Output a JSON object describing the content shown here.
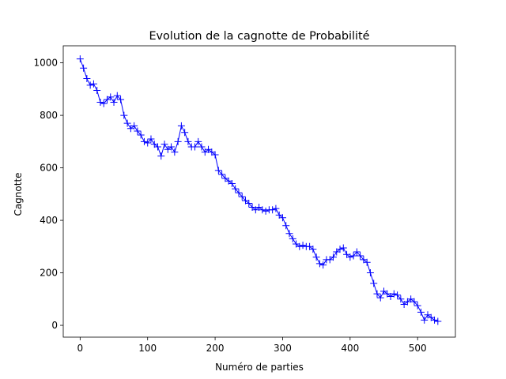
{
  "chart_data": {
    "type": "line",
    "title": "Evolution de la cagnotte de Probabilité",
    "xlabel": "Numéro de parties",
    "ylabel": "Cagnotte",
    "xlim": [
      -25,
      556
    ],
    "ylim": [
      -45,
      1065
    ],
    "x_ticks": [
      0,
      100,
      200,
      300,
      400,
      500
    ],
    "x_tick_labels": [
      "0",
      "100",
      "200",
      "300",
      "400",
      "500"
    ],
    "y_ticks": [
      0,
      200,
      400,
      600,
      800,
      1000
    ],
    "y_tick_labels": [
      "0",
      "200",
      "400",
      "600",
      "800",
      "1000"
    ],
    "grid": false,
    "legend": "none",
    "colors": {
      "series": "#0000ff",
      "axes": "#000000",
      "background": "#ffffff"
    },
    "series": [
      {
        "marker": "+",
        "x": [
          0,
          5,
          10,
          15,
          20,
          25,
          30,
          35,
          40,
          45,
          50,
          55,
          60,
          65,
          70,
          75,
          80,
          85,
          90,
          95,
          100,
          105,
          110,
          115,
          120,
          125,
          130,
          135,
          140,
          145,
          150,
          155,
          160,
          165,
          170,
          175,
          180,
          185,
          190,
          195,
          200,
          205,
          210,
          215,
          220,
          225,
          230,
          235,
          240,
          245,
          250,
          255,
          260,
          265,
          270,
          275,
          280,
          285,
          290,
          295,
          300,
          305,
          310,
          315,
          320,
          325,
          330,
          335,
          340,
          345,
          350,
          355,
          360,
          365,
          370,
          375,
          380,
          385,
          390,
          395,
          400,
          405,
          410,
          415,
          420,
          425,
          430,
          435,
          440,
          445,
          450,
          455,
          460,
          465,
          470,
          475,
          480,
          485,
          490,
          495,
          500,
          505,
          510,
          515,
          520,
          525,
          530
        ],
        "y": [
          1015,
          980,
          940,
          915,
          920,
          895,
          850,
          845,
          860,
          870,
          850,
          875,
          860,
          800,
          770,
          750,
          760,
          740,
          725,
          700,
          695,
          710,
          690,
          680,
          645,
          690,
          670,
          680,
          660,
          700,
          760,
          735,
          700,
          680,
          680,
          700,
          680,
          660,
          670,
          660,
          650,
          590,
          575,
          560,
          550,
          540,
          520,
          505,
          490,
          475,
          465,
          450,
          440,
          450,
          440,
          435,
          440,
          440,
          445,
          420,
          410,
          380,
          350,
          330,
          310,
          300,
          305,
          300,
          300,
          290,
          260,
          235,
          230,
          250,
          250,
          260,
          280,
          290,
          295,
          270,
          260,
          265,
          280,
          265,
          250,
          240,
          200,
          160,
          120,
          105,
          130,
          120,
          110,
          120,
          115,
          100,
          80,
          90,
          100,
          90,
          75,
          50,
          20,
          40,
          30,
          20,
          15
        ]
      }
    ]
  }
}
